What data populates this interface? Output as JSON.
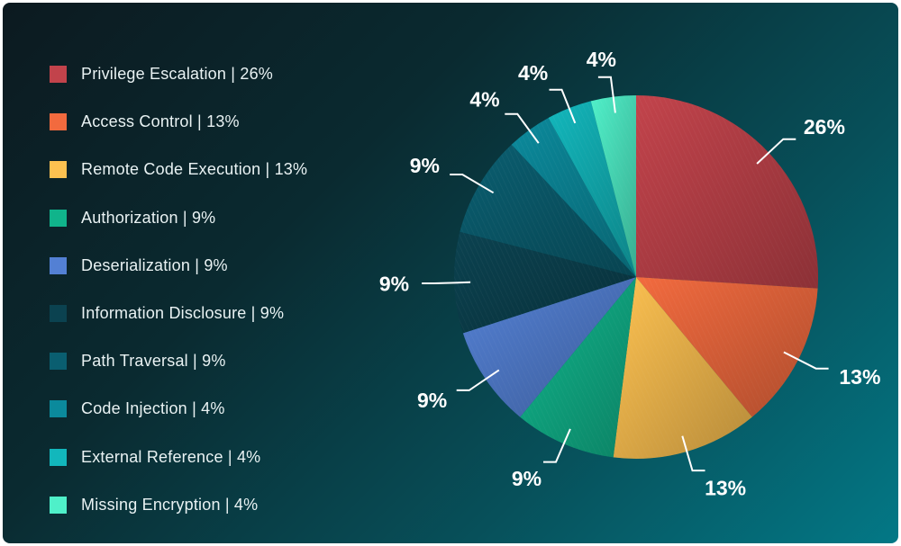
{
  "chart_data": {
    "type": "pie",
    "categories": [
      "Privilege Escalation",
      "Access Control",
      "Remote Code Execution",
      "Authorization",
      "Deserialization",
      "Information Disclosure",
      "Path Traversal",
      "Code Injection",
      "External Reference",
      "Missing Encryption"
    ],
    "values": [
      26,
      13,
      13,
      9,
      9,
      9,
      9,
      4,
      4,
      4
    ],
    "value_labels": [
      "26%",
      "13%",
      "13%",
      "9%",
      "9%",
      "9%",
      "9%",
      "4%",
      "4%",
      "4%"
    ],
    "legend_entries": [
      "Privilege Escalation  |  26%",
      "Access Control  |  13%",
      "Remote Code Execution  |  13%",
      "Authorization  |  9%",
      "Deserialization  |  9%",
      "Information Disclosure  |  9%",
      "Path Traversal  |  9%",
      "Code Injection  |  4%",
      "External Reference  |  4%",
      "Missing Encryption  |  4%"
    ],
    "colors": [
      "#c2434b",
      "#f26a3e",
      "#fdc150",
      "#10b48b",
      "#5380d4",
      "#0b4250",
      "#0a5e70",
      "#0b8a9c",
      "#12b7bc",
      "#4ff0c9"
    ],
    "legend_position": "left",
    "grid": false
  }
}
